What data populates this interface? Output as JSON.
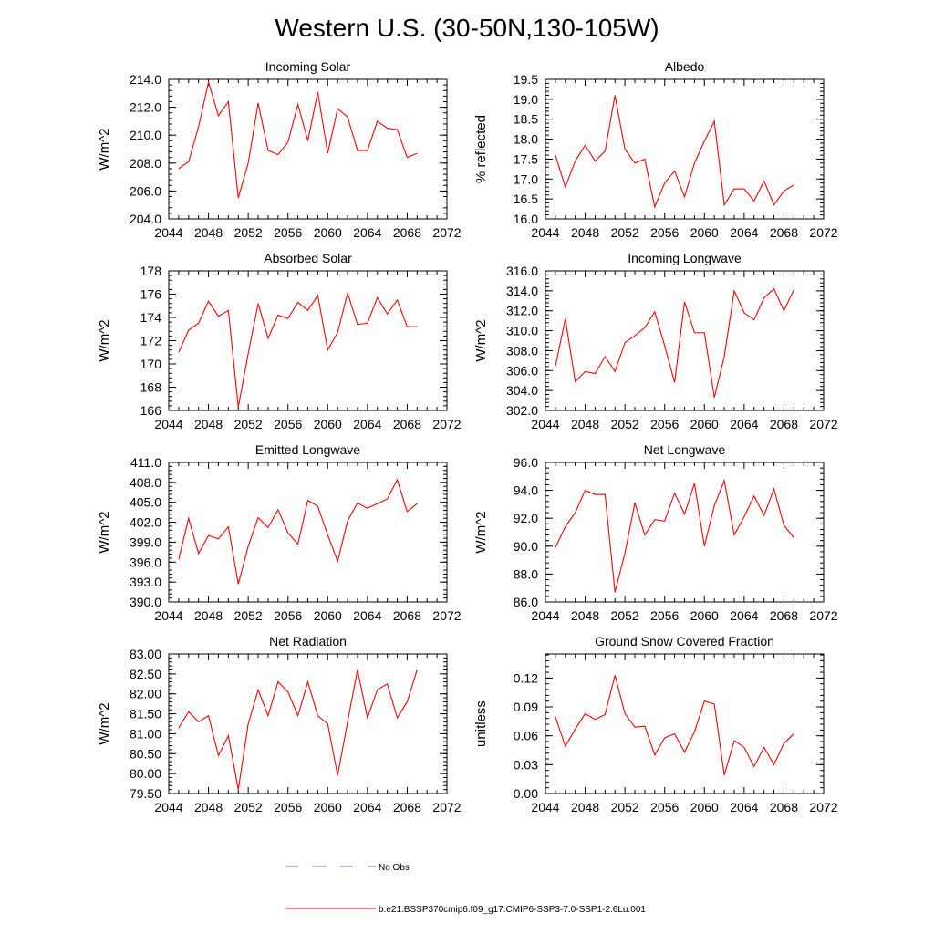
{
  "figure": {
    "title": "Western U.S. (30-50N,130-105W)",
    "line_color": "#ff0000",
    "obs_color": "#6070c8",
    "legend": {
      "obs_label": "No Obs",
      "model_label": "b.e21.BSSP370cmip6.f09_g17.CMIP6-SSP3-7.0-SSP1-2.6Lu.001"
    }
  },
  "chart_data": [
    {
      "type": "line",
      "title": "Incoming Solar",
      "ylabel": "W/m^2",
      "xlim": [
        2044,
        2072
      ],
      "ylim": [
        204,
        214
      ],
      "yticks": [
        "204.0",
        "206.0",
        "208.0",
        "210.0",
        "212.0",
        "214.0"
      ],
      "xticks": [
        "2044",
        "2048",
        "2052",
        "2056",
        "2060",
        "2064",
        "2068",
        "2072"
      ],
      "x": [
        2045,
        2046,
        2047,
        2048,
        2049,
        2050,
        2051,
        2052,
        2053,
        2054,
        2055,
        2056,
        2057,
        2058,
        2059,
        2060,
        2061,
        2062,
        2063,
        2064,
        2065,
        2066,
        2067,
        2068,
        2069
      ],
      "series": [
        {
          "values": [
            207.6,
            208.1,
            210.6,
            213.8,
            211.4,
            212.4,
            205.5,
            208.0,
            212.3,
            208.9,
            208.6,
            209.5,
            212.2,
            209.6,
            213.1,
            208.7,
            211.9,
            211.3,
            208.9,
            208.9,
            211.0,
            210.5,
            210.4,
            208.4,
            208.7
          ]
        }
      ]
    },
    {
      "type": "line",
      "title": "Albedo",
      "ylabel": "% reflected",
      "xlim": [
        2044,
        2072
      ],
      "ylim": [
        16,
        19.5
      ],
      "yticks": [
        "16.0",
        "16.5",
        "17.0",
        "17.5",
        "18.0",
        "18.5",
        "19.0",
        "19.5"
      ],
      "xticks": [
        "2044",
        "2048",
        "2052",
        "2056",
        "2060",
        "2064",
        "2068",
        "2072"
      ],
      "x": [
        2045,
        2046,
        2047,
        2048,
        2049,
        2050,
        2051,
        2052,
        2053,
        2054,
        2055,
        2056,
        2057,
        2058,
        2059,
        2060,
        2061,
        2062,
        2063,
        2064,
        2065,
        2066,
        2067,
        2068,
        2069
      ],
      "series": [
        {
          "values": [
            17.6,
            16.8,
            17.45,
            17.85,
            17.45,
            17.7,
            19.1,
            17.75,
            17.4,
            17.5,
            16.3,
            16.9,
            17.2,
            16.55,
            17.4,
            17.95,
            18.45,
            16.35,
            16.75,
            16.75,
            16.45,
            16.95,
            16.35,
            16.7,
            16.85
          ]
        }
      ]
    },
    {
      "type": "line",
      "title": "Absorbed Solar",
      "ylabel": "W/m^2",
      "xlim": [
        2044,
        2072
      ],
      "ylim": [
        166,
        178
      ],
      "yticks": [
        "166",
        "168",
        "170",
        "172",
        "174",
        "176",
        "178"
      ],
      "xticks": [
        "2044",
        "2048",
        "2052",
        "2056",
        "2060",
        "2064",
        "2068",
        "2072"
      ],
      "x": [
        2045,
        2046,
        2047,
        2048,
        2049,
        2050,
        2051,
        2052,
        2053,
        2054,
        2055,
        2056,
        2057,
        2058,
        2059,
        2060,
        2061,
        2062,
        2063,
        2064,
        2065,
        2066,
        2067,
        2068,
        2069
      ],
      "series": [
        {
          "values": [
            171.0,
            172.9,
            173.5,
            175.4,
            174.1,
            174.6,
            166.3,
            170.9,
            175.2,
            172.2,
            174.2,
            173.9,
            175.3,
            174.6,
            175.9,
            171.2,
            172.7,
            176.1,
            173.4,
            173.5,
            175.7,
            174.3,
            175.5,
            173.2,
            173.2
          ]
        }
      ]
    },
    {
      "type": "line",
      "title": "Incoming Longwave",
      "ylabel": "W/m^2",
      "xlim": [
        2044,
        2072
      ],
      "ylim": [
        302,
        316
      ],
      "yticks": [
        "302.0",
        "304.0",
        "306.0",
        "308.0",
        "310.0",
        "312.0",
        "314.0",
        "316.0"
      ],
      "xticks": [
        "2044",
        "2048",
        "2052",
        "2056",
        "2060",
        "2064",
        "2068",
        "2072"
      ],
      "x": [
        2045,
        2046,
        2047,
        2048,
        2049,
        2050,
        2051,
        2052,
        2053,
        2054,
        2055,
        2056,
        2057,
        2058,
        2059,
        2060,
        2061,
        2062,
        2063,
        2064,
        2065,
        2066,
        2067,
        2068,
        2069
      ],
      "series": [
        {
          "values": [
            306.4,
            311.2,
            304.9,
            305.9,
            305.7,
            307.4,
            305.9,
            308.8,
            309.5,
            310.3,
            311.9,
            308.5,
            304.8,
            312.9,
            309.8,
            309.8,
            303.3,
            307.4,
            314.0,
            311.8,
            311.1,
            313.3,
            314.2,
            312.0,
            314.1
          ]
        }
      ]
    },
    {
      "type": "line",
      "title": "Emitted Longwave",
      "ylabel": "W/m^2",
      "xlim": [
        2044,
        2072
      ],
      "ylim": [
        390,
        411
      ],
      "yticks": [
        "390.0",
        "393.0",
        "396.0",
        "399.0",
        "402.0",
        "405.0",
        "408.0",
        "411.0"
      ],
      "xticks": [
        "2044",
        "2048",
        "2052",
        "2056",
        "2060",
        "2064",
        "2068",
        "2072"
      ],
      "x": [
        2045,
        2046,
        2047,
        2048,
        2049,
        2050,
        2051,
        2052,
        2053,
        2054,
        2055,
        2056,
        2057,
        2058,
        2059,
        2060,
        2061,
        2062,
        2063,
        2064,
        2065,
        2066,
        2067,
        2068,
        2069
      ],
      "series": [
        {
          "values": [
            396.4,
            402.6,
            397.3,
            400.0,
            399.5,
            401.3,
            392.7,
            398.4,
            402.7,
            401.2,
            403.9,
            400.4,
            398.7,
            405.3,
            404.4,
            400.1,
            396.1,
            402.2,
            404.9,
            404.1,
            404.8,
            405.5,
            408.4,
            403.6,
            404.8
          ]
        }
      ]
    },
    {
      "type": "line",
      "title": "Net Longwave",
      "ylabel": "W/m^2",
      "xlim": [
        2044,
        2072
      ],
      "ylim": [
        86,
        96
      ],
      "yticks": [
        "86.0",
        "88.0",
        "90.0",
        "92.0",
        "94.0",
        "96.0"
      ],
      "xticks": [
        "2044",
        "2048",
        "2052",
        "2056",
        "2060",
        "2064",
        "2068",
        "2072"
      ],
      "x": [
        2045,
        2046,
        2047,
        2048,
        2049,
        2050,
        2051,
        2052,
        2053,
        2054,
        2055,
        2056,
        2057,
        2058,
        2059,
        2060,
        2061,
        2062,
        2063,
        2064,
        2065,
        2066,
        2067,
        2068,
        2069
      ],
      "series": [
        {
          "values": [
            89.9,
            91.4,
            92.4,
            94.0,
            93.7,
            93.7,
            86.7,
            89.5,
            93.1,
            90.8,
            91.9,
            91.8,
            93.8,
            92.3,
            94.5,
            90.0,
            92.9,
            94.7,
            90.8,
            92.1,
            93.6,
            92.2,
            94.1,
            91.5,
            90.6
          ]
        }
      ]
    },
    {
      "type": "line",
      "title": "Net Radiation",
      "ylabel": "W/m^2",
      "xlim": [
        2044,
        2072
      ],
      "ylim": [
        79.5,
        83
      ],
      "yticks": [
        "79.50",
        "80.00",
        "80.50",
        "81.00",
        "81.50",
        "82.00",
        "82.50",
        "83.00"
      ],
      "xticks": [
        "2044",
        "2048",
        "2052",
        "2056",
        "2060",
        "2064",
        "2068",
        "2072"
      ],
      "x": [
        2045,
        2046,
        2047,
        2048,
        2049,
        2050,
        2051,
        2052,
        2053,
        2054,
        2055,
        2056,
        2057,
        2058,
        2059,
        2060,
        2061,
        2062,
        2063,
        2064,
        2065,
        2066,
        2067,
        2068,
        2069
      ],
      "series": [
        {
          "values": [
            81.15,
            81.55,
            81.3,
            81.45,
            80.45,
            80.95,
            79.6,
            81.25,
            82.1,
            81.45,
            82.3,
            82.05,
            81.45,
            82.3,
            81.45,
            81.25,
            79.95,
            81.3,
            82.6,
            81.4,
            82.1,
            82.25,
            81.4,
            81.8,
            82.6
          ]
        }
      ]
    },
    {
      "type": "line",
      "title": "Ground Snow Covered Fraction",
      "ylabel": "unitless",
      "xlim": [
        2044,
        2072
      ],
      "ylim": [
        0,
        0.145
      ],
      "yticks": [
        "0.00",
        "0.03",
        "0.06",
        "0.09",
        "0.12"
      ],
      "xticks": [
        "2044",
        "2048",
        "2052",
        "2056",
        "2060",
        "2064",
        "2068",
        "2072"
      ],
      "x": [
        2045,
        2046,
        2047,
        2048,
        2049,
        2050,
        2051,
        2052,
        2053,
        2054,
        2055,
        2056,
        2057,
        2058,
        2059,
        2060,
        2061,
        2062,
        2063,
        2064,
        2065,
        2066,
        2067,
        2068,
        2069
      ],
      "series": [
        {
          "values": [
            0.08,
            0.049,
            0.067,
            0.083,
            0.077,
            0.082,
            0.123,
            0.083,
            0.069,
            0.07,
            0.04,
            0.058,
            0.062,
            0.043,
            0.064,
            0.096,
            0.093,
            0.019,
            0.055,
            0.048,
            0.028,
            0.048,
            0.03,
            0.052,
            0.062
          ]
        }
      ]
    }
  ]
}
